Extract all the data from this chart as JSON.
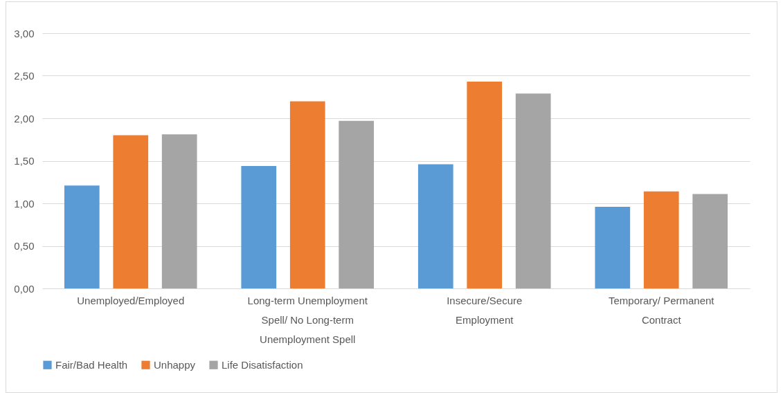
{
  "chart_data": {
    "type": "bar",
    "categories": [
      "Unemployed/Employed",
      "Long-term Unemployment Spell/ No Long-term Unemployment Spell",
      "Insecure/Secure Employment",
      "Temporary/ Permanent Contract"
    ],
    "series": [
      {
        "name": "Fair/Bad Health",
        "color": "#5b9bd5",
        "values": [
          1.21,
          1.44,
          1.46,
          0.96
        ]
      },
      {
        "name": "Unhappy",
        "color": "#ed7d31",
        "values": [
          1.8,
          2.2,
          2.43,
          1.14
        ]
      },
      {
        "name": "Life Disatisfaction",
        "color": "#a5a5a5",
        "values": [
          1.81,
          1.97,
          2.29,
          1.11
        ]
      }
    ],
    "ylim": [
      0,
      3
    ],
    "yticks": [
      {
        "value": 0,
        "label": "0,00"
      },
      {
        "value": 0.5,
        "label": "0,50"
      },
      {
        "value": 1,
        "label": "1,00"
      },
      {
        "value": 1.5,
        "label": "1,50"
      },
      {
        "value": 2,
        "label": "2,00"
      },
      {
        "value": 2.5,
        "label": "2,50"
      },
      {
        "value": 3,
        "label": "3,00"
      }
    ],
    "grid": "y",
    "legend": "bottom"
  }
}
